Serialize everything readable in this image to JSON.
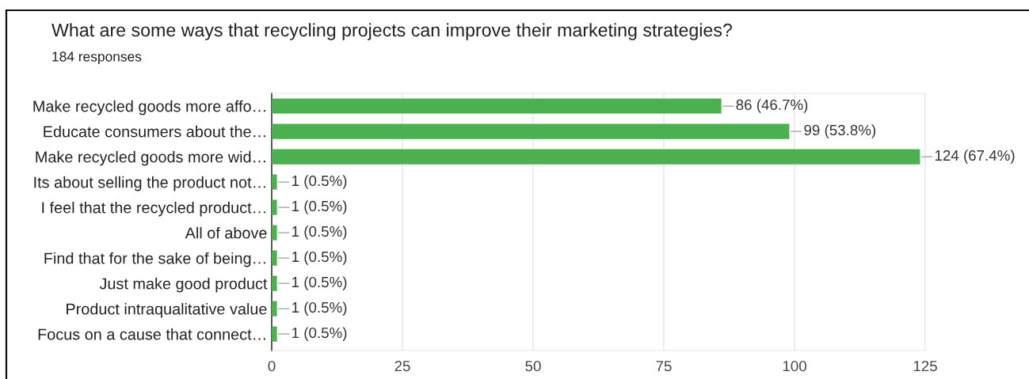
{
  "chart_data": {
    "type": "bar",
    "orientation": "horizontal",
    "title": "What are some ways that recycling projects can improve their marketing strategies?",
    "subtitle": "184 responses",
    "categories": [
      "Make recycled goods more affo…",
      "Educate consumers about the…",
      "Make recycled goods more wid…",
      "Its about selling the product not…",
      "I feel that the recycled product…",
      "All of above",
      "Find that for the sake of being…",
      "Just make good product",
      "Product intraqualitative value",
      "Focus on a cause that connect…"
    ],
    "values": [
      86,
      99,
      124,
      1,
      1,
      1,
      1,
      1,
      1,
      1
    ],
    "value_labels": [
      "86 (46.7%)",
      "99 (53.8%)",
      "124 (67.4%)",
      "1 (0.5%)",
      "1 (0.5%)",
      "1 (0.5%)",
      "1 (0.5%)",
      "1 (0.5%)",
      "1 (0.5%)",
      "1 (0.5%)"
    ],
    "color": "#4caf50",
    "xlim": [
      0,
      125
    ],
    "xticks": [
      0,
      25,
      50,
      75,
      100,
      125
    ],
    "grid": "x"
  }
}
